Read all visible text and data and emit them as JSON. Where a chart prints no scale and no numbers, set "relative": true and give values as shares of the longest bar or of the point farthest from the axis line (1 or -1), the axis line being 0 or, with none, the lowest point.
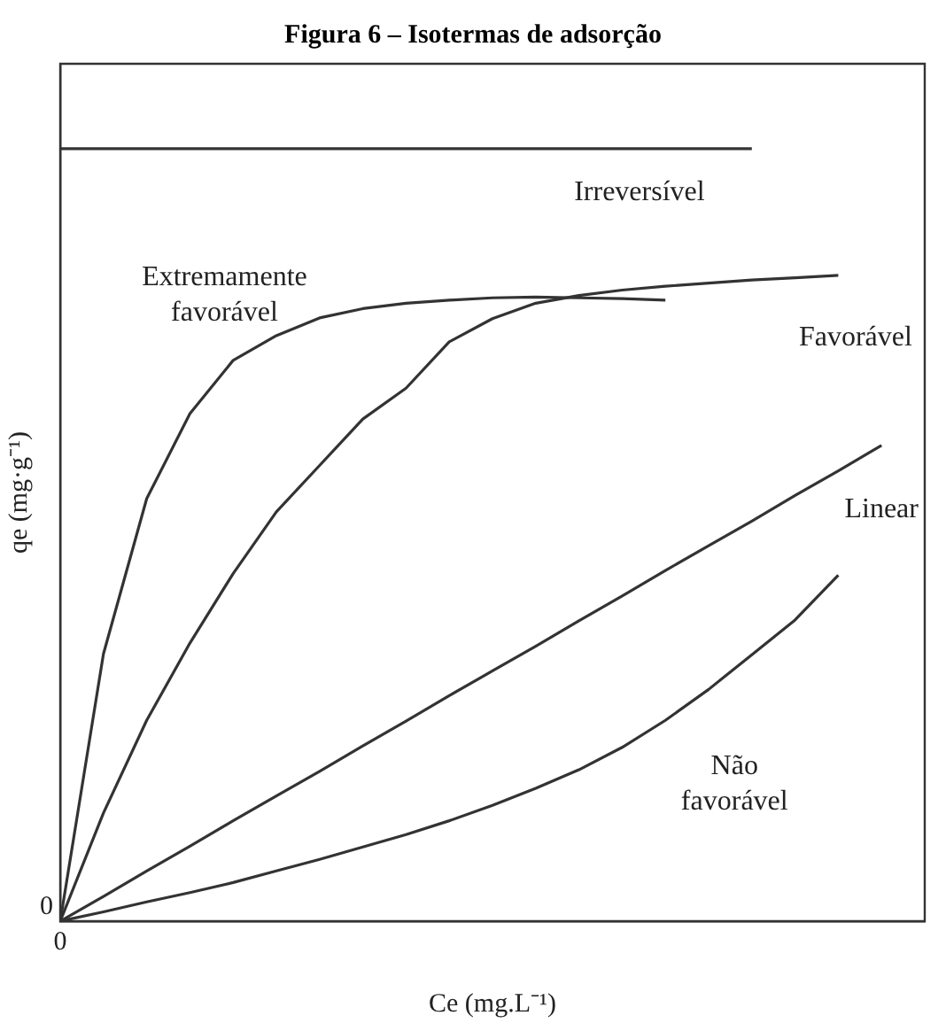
{
  "chart_data": {
    "type": "line",
    "title": "Figura 6 – Isotermas de adsorção",
    "xlabel": "Ce (mg.L⁻¹)",
    "ylabel": "qe (mg·g⁻¹)",
    "relative": true,
    "legend": false,
    "marker": "none",
    "line_style": "solid",
    "annotations": [
      "0",
      "0"
    ],
    "categories": [
      null,
      null,
      null,
      null,
      null,
      null,
      null,
      null,
      null,
      null,
      null,
      null,
      null,
      null,
      null,
      null,
      null,
      null,
      null,
      null
    ],
    "series": [
      {
        "name": "Irreversível",
        "color": "#333333",
        "values": [
          1,
          1,
          1,
          1,
          1,
          1,
          1,
          1,
          1,
          1,
          1,
          1,
          1,
          1,
          1,
          1,
          1,
          null,
          null,
          null
        ]
      },
      {
        "name": "Extremamente favorável",
        "color": "#333333",
        "values": [
          0,
          0.346,
          0.547,
          0.657,
          0.726,
          0.758,
          0.781,
          0.793,
          0.8,
          0.804,
          0.807,
          0.808,
          0.807,
          0.806,
          0.804,
          null,
          null,
          null,
          null,
          null
        ]
      },
      {
        "name": "Favorável",
        "color": "#333333",
        "values": [
          0,
          0.14,
          0.26,
          0.36,
          0.45,
          0.53,
          0.59,
          0.65,
          0.69,
          0.75,
          0.78,
          0.8,
          0.81,
          0.817,
          0.822,
          0.826,
          0.83,
          0.833,
          0.836,
          null
        ]
      },
      {
        "name": "Linear",
        "color": "#333333",
        "values": [
          0,
          0.032,
          0.065,
          0.097,
          0.13,
          0.162,
          0.194,
          0.227,
          0.259,
          0.292,
          0.324,
          0.356,
          0.389,
          0.421,
          0.454,
          0.486,
          0.518,
          0.551,
          0.583,
          0.616
        ]
      },
      {
        "name": "Não favorável",
        "color": "#333333",
        "values": [
          0,
          0.012,
          0.025,
          0.037,
          0.05,
          0.065,
          0.08,
          0.096,
          0.112,
          0.13,
          0.15,
          0.172,
          0.196,
          0.225,
          0.26,
          0.3,
          0.345,
          0.39,
          0.448,
          null
        ]
      }
    ]
  }
}
